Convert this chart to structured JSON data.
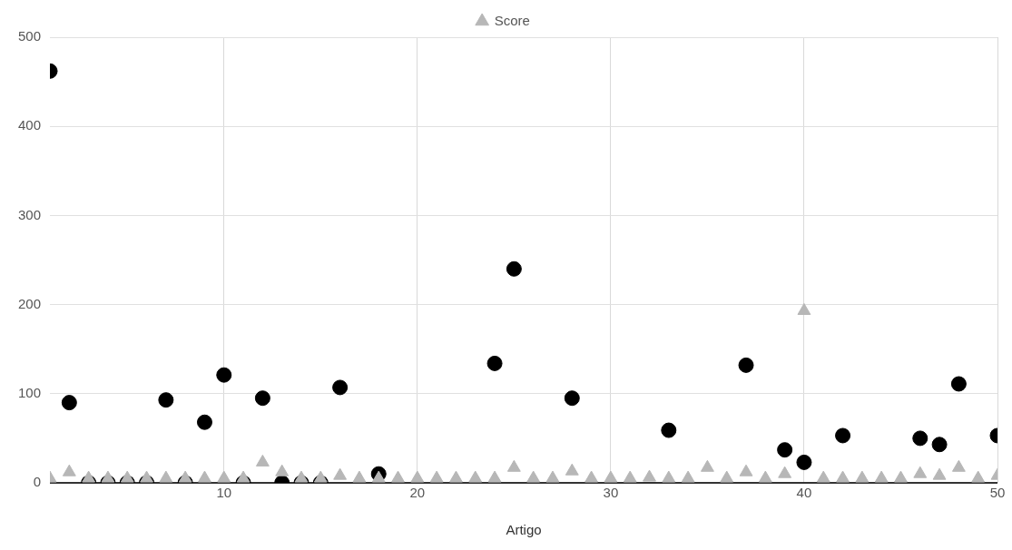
{
  "chart_data": {
    "type": "scatter",
    "xlabel": "Artigo",
    "x": [
      1,
      2,
      3,
      4,
      5,
      6,
      7,
      8,
      9,
      10,
      11,
      12,
      13,
      14,
      15,
      16,
      17,
      18,
      19,
      20,
      21,
      22,
      23,
      24,
      25,
      26,
      27,
      28,
      29,
      30,
      31,
      32,
      33,
      34,
      35,
      36,
      37,
      38,
      39,
      40,
      41,
      42,
      43,
      44,
      45,
      46,
      47,
      48,
      49,
      50
    ],
    "series": [
      {
        "name": "Score",
        "color": "#b7b7b7",
        "marker": "triangle",
        "values": [
          5,
          12,
          5,
          5,
          5,
          5,
          5,
          5,
          5,
          5,
          5,
          23,
          12,
          5,
          5,
          8,
          5,
          5,
          5,
          5,
          5,
          5,
          5,
          5,
          17,
          5,
          5,
          13,
          5,
          5,
          5,
          6,
          5,
          5,
          17,
          5,
          12,
          5,
          10,
          193,
          5,
          5,
          5,
          5,
          5,
          10,
          8,
          17,
          5,
          8
        ]
      },
      {
        "color": "#000000",
        "marker": "circle",
        "values": [
          462,
          90,
          0,
          0,
          0,
          0,
          93,
          0,
          68,
          121,
          0,
          95,
          0,
          0,
          0,
          107,
          null,
          10,
          null,
          null,
          null,
          null,
          null,
          134,
          240,
          null,
          null,
          95,
          null,
          null,
          null,
          null,
          59,
          null,
          null,
          null,
          132,
          null,
          37,
          23,
          null,
          53,
          null,
          null,
          null,
          50,
          43,
          111,
          null,
          53
        ]
      }
    ],
    "xlim": [
      1,
      50
    ],
    "xticks": [
      10,
      20,
      30,
      40,
      50
    ],
    "ylim": [
      0,
      500
    ],
    "yticks": [
      0,
      100,
      200,
      300,
      400,
      500
    ],
    "grid": true,
    "legend": "top"
  }
}
